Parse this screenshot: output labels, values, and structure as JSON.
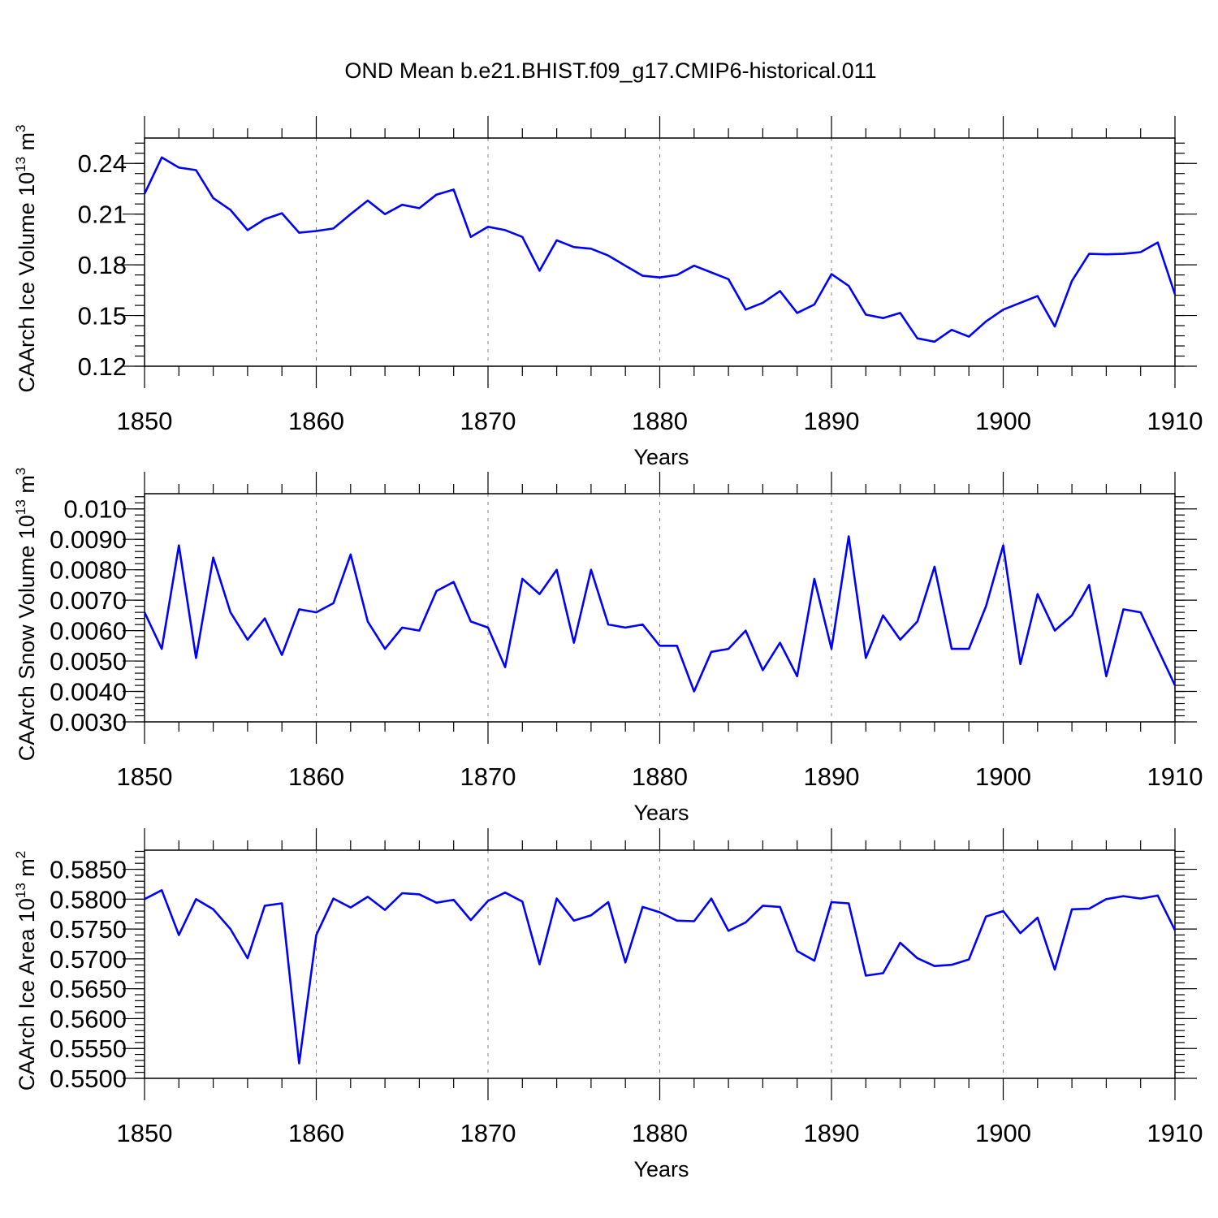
{
  "title": "OND Mean b.e21.BHIST.f09_g17.CMIP6-historical.011",
  "line_color": "#0000ff",
  "chart_data": [
    {
      "type": "line",
      "xlabel": "Years",
      "ylabel": "CAArch Ice Volume 10",
      "ylabel_sup": "13",
      "ylabel_unit": "m",
      "ylabel_unit_sup": "3",
      "xlim": [
        1850,
        1910
      ],
      "ylim": [
        0.12,
        0.255
      ],
      "xticks": [
        "1850",
        "1860",
        "1870",
        "1880",
        "1890",
        "1900",
        "1910"
      ],
      "xtick_values": [
        1850,
        1860,
        1870,
        1880,
        1890,
        1900,
        1910
      ],
      "yticks": [
        "0.12",
        "0.15",
        "0.18",
        "0.21",
        "0.24"
      ],
      "ytick_values": [
        0.12,
        0.15,
        0.18,
        0.21,
        0.24
      ],
      "yminor_step": 0.006,
      "x": [
        1850,
        1851,
        1852,
        1853,
        1854,
        1855,
        1856,
        1857,
        1858,
        1859,
        1860,
        1861,
        1862,
        1863,
        1864,
        1865,
        1866,
        1867,
        1868,
        1869,
        1870,
        1871,
        1872,
        1873,
        1874,
        1875,
        1876,
        1877,
        1878,
        1879,
        1880,
        1881,
        1882,
        1883,
        1884,
        1885,
        1886,
        1887,
        1888,
        1889,
        1890,
        1891,
        1892,
        1893,
        1894,
        1895,
        1896,
        1897,
        1898,
        1899,
        1900,
        1901,
        1902,
        1903,
        1904,
        1905,
        1906,
        1907,
        1908,
        1909,
        1910
      ],
      "values": [
        0.222,
        0.2435,
        0.2375,
        0.236,
        0.2195,
        0.2125,
        0.2005,
        0.207,
        0.2105,
        0.199,
        0.2,
        0.2015,
        0.21,
        0.218,
        0.21,
        0.2155,
        0.2135,
        0.2215,
        0.2245,
        0.1965,
        0.2025,
        0.2005,
        0.1965,
        0.1765,
        0.1945,
        0.1905,
        0.1895,
        0.1855,
        0.1795,
        0.1735,
        0.1725,
        0.174,
        0.1795,
        0.1755,
        0.1715,
        0.1535,
        0.1575,
        0.1645,
        0.1515,
        0.1565,
        0.1745,
        0.1675,
        0.1505,
        0.1485,
        0.1515,
        0.1365,
        0.1345,
        0.1415,
        0.1375,
        0.1465,
        0.1535,
        0.1575,
        0.1615,
        0.1435,
        0.1705,
        0.1865,
        0.1862,
        0.1865,
        0.1875,
        0.1932,
        0.1625
      ]
    },
    {
      "type": "line",
      "xlabel": "Years",
      "ylabel": "CAArch Snow Volume 10",
      "ylabel_sup": "13",
      "ylabel_unit": "m",
      "ylabel_unit_sup": "3",
      "xlim": [
        1850,
        1910
      ],
      "ylim": [
        0.003,
        0.0105
      ],
      "xticks": [
        "1850",
        "1860",
        "1870",
        "1880",
        "1890",
        "1900",
        "1910"
      ],
      "xtick_values": [
        1850,
        1860,
        1870,
        1880,
        1890,
        1900,
        1910
      ],
      "yticks": [
        "0.0030",
        "0.0040",
        "0.0050",
        "0.0060",
        "0.0070",
        "0.0080",
        "0.0090",
        "0.010"
      ],
      "ytick_values": [
        0.003,
        0.004,
        0.005,
        0.006,
        0.007,
        0.008,
        0.009,
        0.01
      ],
      "yminor_step": 0.0002,
      "x": [
        1850,
        1851,
        1852,
        1853,
        1854,
        1855,
        1856,
        1857,
        1858,
        1859,
        1860,
        1861,
        1862,
        1863,
        1864,
        1865,
        1866,
        1867,
        1868,
        1869,
        1870,
        1871,
        1872,
        1873,
        1874,
        1875,
        1876,
        1877,
        1878,
        1879,
        1880,
        1881,
        1882,
        1883,
        1884,
        1885,
        1886,
        1887,
        1888,
        1889,
        1890,
        1891,
        1892,
        1893,
        1894,
        1895,
        1896,
        1897,
        1898,
        1899,
        1900,
        1901,
        1902,
        1903,
        1904,
        1905,
        1906,
        1907,
        1908,
        1909,
        1910
      ],
      "values": [
        0.0066,
        0.0054,
        0.0088,
        0.0051,
        0.0084,
        0.0066,
        0.0057,
        0.0064,
        0.0052,
        0.0067,
        0.0066,
        0.0069,
        0.0085,
        0.0063,
        0.0054,
        0.0061,
        0.006,
        0.0073,
        0.0076,
        0.0063,
        0.0061,
        0.0048,
        0.0077,
        0.0072,
        0.008,
        0.0056,
        0.008,
        0.0062,
        0.0061,
        0.0062,
        0.0055,
        0.0055,
        0.004,
        0.0053,
        0.0054,
        0.006,
        0.0047,
        0.0056,
        0.0045,
        0.0077,
        0.0054,
        0.0091,
        0.0051,
        0.0065,
        0.0057,
        0.0063,
        0.0081,
        0.0054,
        0.0054,
        0.0068,
        0.0088,
        0.0049,
        0.0072,
        0.006,
        0.0065,
        0.0075,
        0.0045,
        0.0067,
        0.0066,
        0.0054,
        0.0042
      ]
    },
    {
      "type": "line",
      "xlabel": "Years",
      "ylabel": "CAArch Ice Area 10",
      "ylabel_sup": "13",
      "ylabel_unit": "m",
      "ylabel_unit_sup": "2",
      "xlim": [
        1850,
        1910
      ],
      "ylim": [
        0.55,
        0.5882
      ],
      "xticks": [
        "1850",
        "1860",
        "1870",
        "1880",
        "1890",
        "1900",
        "1910"
      ],
      "xtick_values": [
        1850,
        1860,
        1870,
        1880,
        1890,
        1900,
        1910
      ],
      "yticks": [
        "0.5500",
        "0.5550",
        "0.5600",
        "0.5650",
        "0.5700",
        "0.5750",
        "0.5800",
        "0.5850"
      ],
      "ytick_values": [
        0.55,
        0.555,
        0.56,
        0.565,
        0.57,
        0.575,
        0.58,
        0.585
      ],
      "yminor_step": 0.001,
      "x": [
        1850,
        1851,
        1852,
        1853,
        1854,
        1855,
        1856,
        1857,
        1858,
        1859,
        1860,
        1861,
        1862,
        1863,
        1864,
        1865,
        1866,
        1867,
        1868,
        1869,
        1870,
        1871,
        1872,
        1873,
        1874,
        1875,
        1876,
        1877,
        1878,
        1879,
        1880,
        1881,
        1882,
        1883,
        1884,
        1885,
        1886,
        1887,
        1888,
        1889,
        1890,
        1891,
        1892,
        1893,
        1894,
        1895,
        1896,
        1897,
        1898,
        1899,
        1900,
        1901,
        1902,
        1903,
        1904,
        1905,
        1906,
        1907,
        1908,
        1909,
        1910
      ],
      "values": [
        0.58,
        0.5815,
        0.574,
        0.58,
        0.5783,
        0.575,
        0.5701,
        0.5789,
        0.5793,
        0.5525,
        0.574,
        0.5801,
        0.5786,
        0.5804,
        0.5782,
        0.581,
        0.5808,
        0.5794,
        0.5799,
        0.5765,
        0.5797,
        0.5811,
        0.5796,
        0.5691,
        0.5801,
        0.5764,
        0.5773,
        0.5795,
        0.5694,
        0.5787,
        0.5778,
        0.5764,
        0.5763,
        0.5801,
        0.5747,
        0.5761,
        0.5789,
        0.5787,
        0.5713,
        0.5697,
        0.5795,
        0.5793,
        0.5672,
        0.5676,
        0.5727,
        0.5701,
        0.5688,
        0.569,
        0.5699,
        0.5771,
        0.578,
        0.5743,
        0.5769,
        0.5682,
        0.5783,
        0.5784,
        0.58,
        0.5805,
        0.5801,
        0.5806,
        0.5748
      ]
    }
  ]
}
